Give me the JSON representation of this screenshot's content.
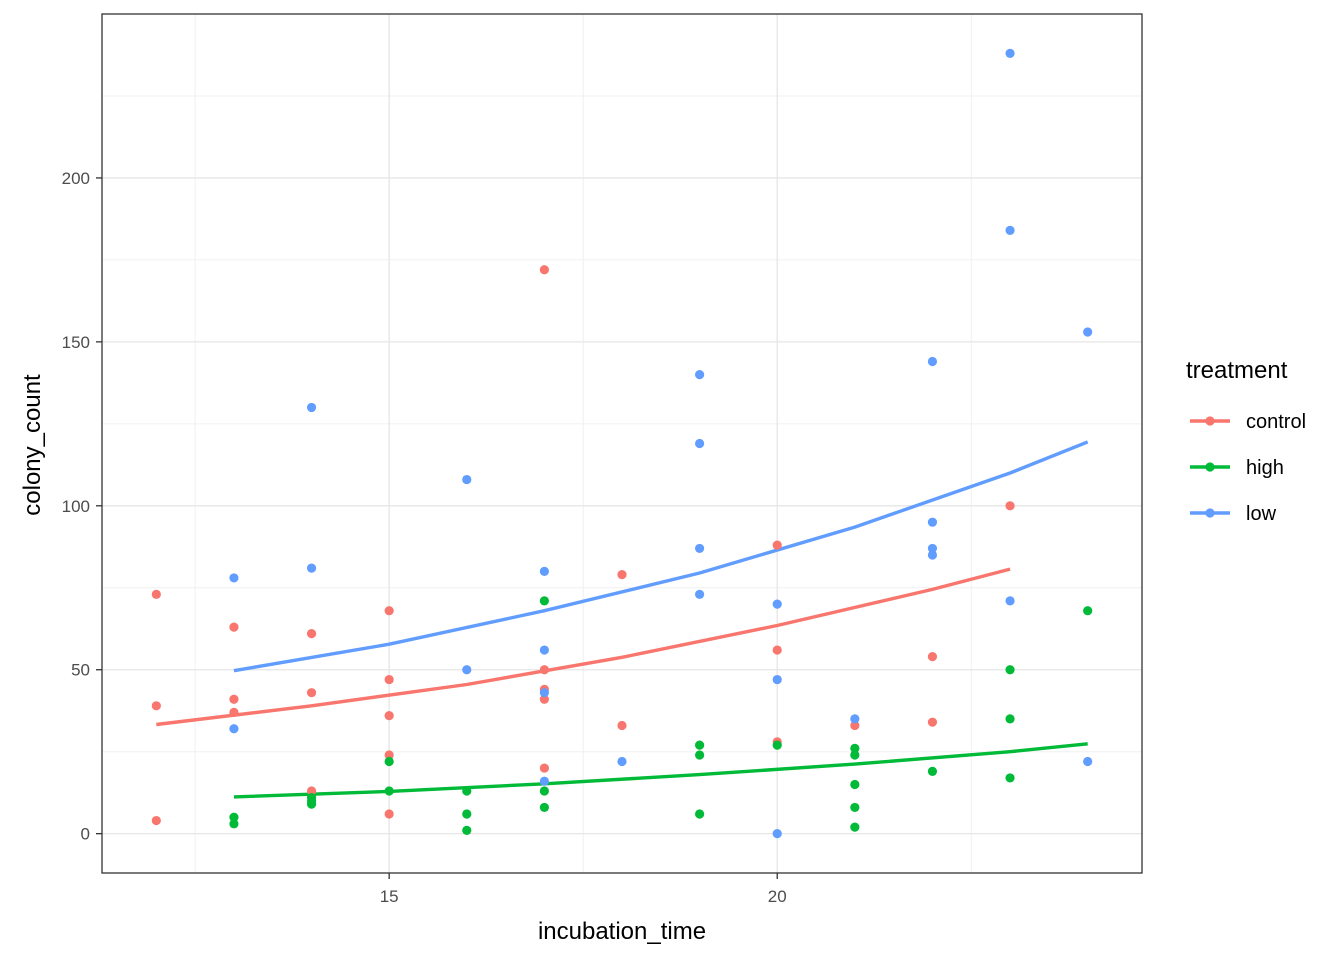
{
  "chart_data": {
    "type": "scatter",
    "title": "",
    "xlabel": "incubation_time",
    "ylabel": "colony_count",
    "xlim": [
      11.3,
      24.7
    ],
    "ylim": [
      -12,
      250
    ],
    "x_ticks": [
      15,
      20
    ],
    "y_ticks": [
      0,
      50,
      100,
      150,
      200
    ],
    "grid": true,
    "legend": {
      "title": "treatment",
      "position": "right"
    },
    "series": [
      {
        "name": "control",
        "color": "#F8766D",
        "points": [
          [
            12,
            73
          ],
          [
            12,
            39
          ],
          [
            12,
            4
          ],
          [
            13,
            63
          ],
          [
            13,
            41
          ],
          [
            13,
            37
          ],
          [
            14,
            61
          ],
          [
            14,
            43
          ],
          [
            14,
            13
          ],
          [
            15,
            68
          ],
          [
            15,
            47
          ],
          [
            15,
            36
          ],
          [
            15,
            24
          ],
          [
            15,
            6
          ],
          [
            17,
            172
          ],
          [
            17,
            50
          ],
          [
            17,
            44
          ],
          [
            17,
            41
          ],
          [
            17,
            20
          ],
          [
            18,
            79
          ],
          [
            18,
            33
          ],
          [
            20,
            88
          ],
          [
            20,
            56
          ],
          [
            20,
            28
          ],
          [
            21,
            33
          ],
          [
            22,
            54
          ],
          [
            22,
            34
          ],
          [
            23,
            100
          ]
        ],
        "fit": [
          [
            12,
            33.3
          ],
          [
            14,
            39
          ],
          [
            16,
            45.5
          ],
          [
            18,
            53.8
          ],
          [
            20,
            63.5
          ],
          [
            22,
            74.5
          ],
          [
            23,
            80.7
          ]
        ]
      },
      {
        "name": "high",
        "color": "#00BA38",
        "points": [
          [
            13,
            5
          ],
          [
            13,
            3
          ],
          [
            14,
            11
          ],
          [
            14,
            10
          ],
          [
            14,
            9
          ],
          [
            15,
            22
          ],
          [
            15,
            13
          ],
          [
            16,
            13
          ],
          [
            16,
            6
          ],
          [
            16,
            1
          ],
          [
            17,
            71
          ],
          [
            17,
            13
          ],
          [
            17,
            8
          ],
          [
            19,
            27
          ],
          [
            19,
            24
          ],
          [
            19,
            6
          ],
          [
            20,
            27
          ],
          [
            21,
            26
          ],
          [
            21,
            24
          ],
          [
            21,
            15
          ],
          [
            21,
            8
          ],
          [
            21,
            2
          ],
          [
            22,
            19
          ],
          [
            23,
            50
          ],
          [
            23,
            35
          ],
          [
            23,
            17
          ],
          [
            24,
            68
          ]
        ],
        "fit": [
          [
            13,
            11.2
          ],
          [
            15,
            12.9
          ],
          [
            17,
            15.2
          ],
          [
            19,
            18
          ],
          [
            21,
            21.2
          ],
          [
            23,
            25
          ],
          [
            24,
            27.4
          ]
        ]
      },
      {
        "name": "low",
        "color": "#619CFF",
        "points": [
          [
            13,
            78
          ],
          [
            13,
            32
          ],
          [
            14,
            130
          ],
          [
            14,
            81
          ],
          [
            16,
            108
          ],
          [
            16,
            50
          ],
          [
            17,
            80
          ],
          [
            17,
            56
          ],
          [
            17,
            43
          ],
          [
            17,
            16
          ],
          [
            18,
            22
          ],
          [
            19,
            140
          ],
          [
            19,
            119
          ],
          [
            19,
            87
          ],
          [
            19,
            73
          ],
          [
            20,
            70
          ],
          [
            20,
            47
          ],
          [
            20,
            0
          ],
          [
            21,
            35
          ],
          [
            22,
            144
          ],
          [
            22,
            95
          ],
          [
            22,
            87
          ],
          [
            22,
            85
          ],
          [
            23,
            238
          ],
          [
            23,
            184
          ],
          [
            23,
            71
          ],
          [
            24,
            153
          ],
          [
            24,
            22
          ]
        ],
        "fit": [
          [
            13,
            49.7
          ],
          [
            15,
            57.8
          ],
          [
            17,
            68
          ],
          [
            19,
            79.5
          ],
          [
            21,
            93.5
          ],
          [
            23,
            110
          ],
          [
            24,
            119.5
          ]
        ]
      }
    ]
  }
}
